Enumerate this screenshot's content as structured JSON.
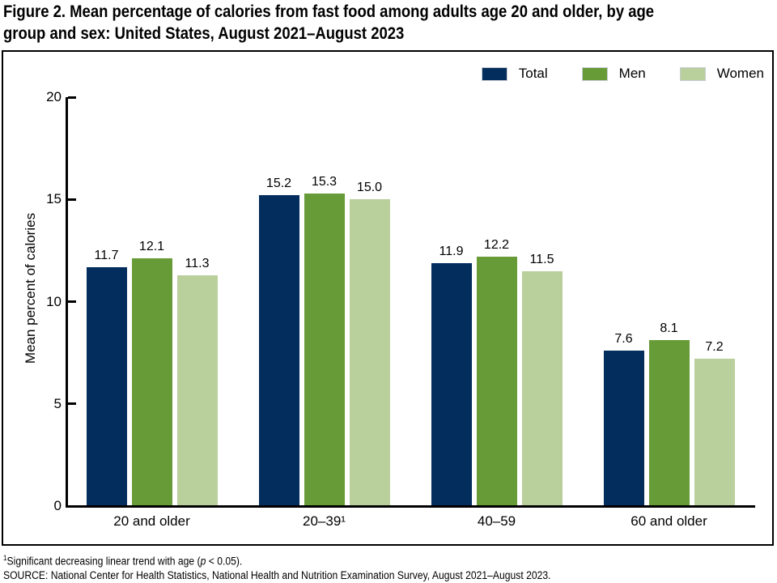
{
  "header": {
    "title_line1": "Figure 2. Mean percentage of calories from fast food among adults age 20 and older, by age",
    "title_line2": "group and sex: United States, August 2021–August 2023"
  },
  "chart_data": {
    "type": "bar",
    "title": "Figure 2. Mean percentage of calories from fast food among adults age 20 and older, by age group and sex: United States, August 2021–August 2023",
    "xlabel": "",
    "ylabel": "Mean percent of calories",
    "ylim": [
      0,
      20
    ],
    "yticks": [
      0,
      5,
      10,
      15,
      20
    ],
    "grid": false,
    "legend_position": "top-right",
    "categories": [
      "20 and older",
      "20–39¹",
      "40–59",
      "60 and older"
    ],
    "series": [
      {
        "name": "Total",
        "color": "#032d5c",
        "values": [
          11.7,
          15.2,
          11.9,
          7.6
        ]
      },
      {
        "name": "Men",
        "color": "#679b37",
        "values": [
          12.1,
          15.3,
          12.2,
          8.1
        ]
      },
      {
        "name": "Women",
        "color": "#b9cf9c",
        "values": [
          11.3,
          15.0,
          11.5,
          7.2
        ]
      }
    ]
  },
  "footnotes": {
    "note1_sup": "1",
    "note1_pre": "Significant decreasing linear trend with age (",
    "note1_italic": "p",
    "note1_post": " < 0.05).",
    "source": "SOURCE: National Center for Health Statistics, National Health and Nutrition Examination Survey, August 2021–August 2023."
  }
}
